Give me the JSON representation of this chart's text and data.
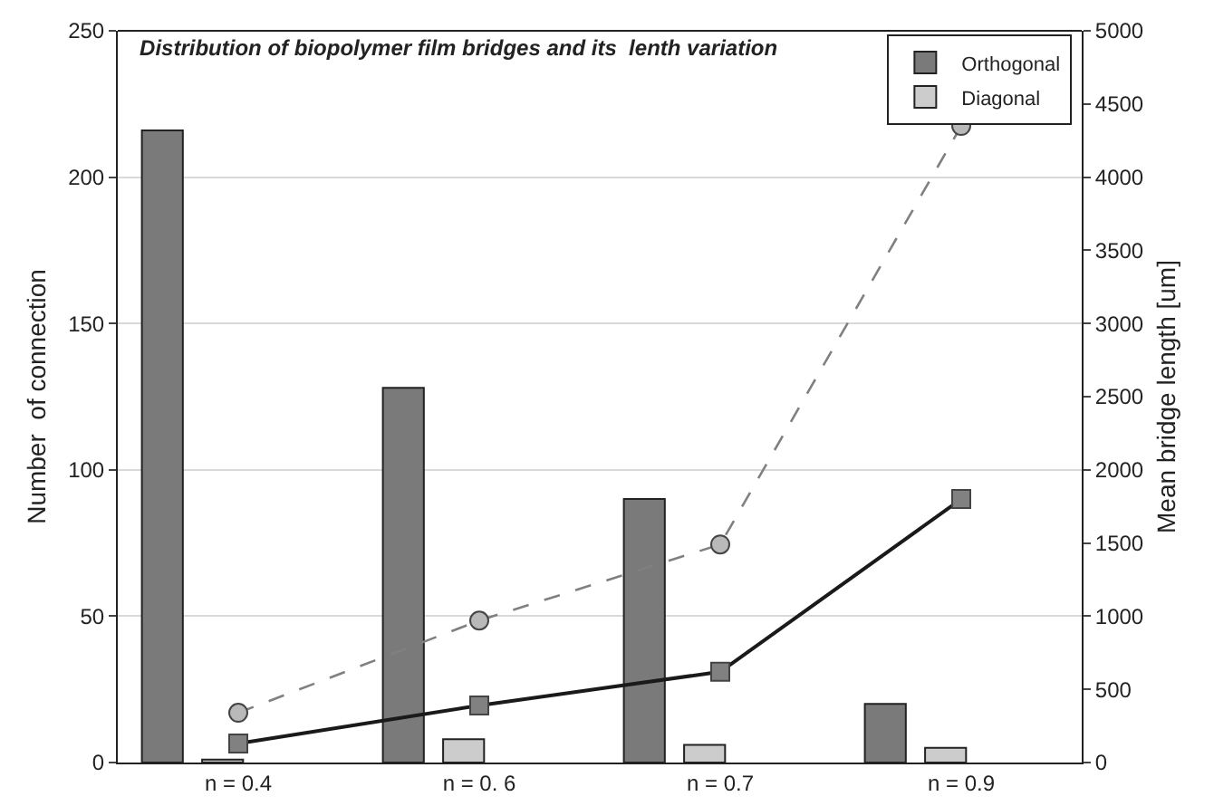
{
  "chart_data": {
    "type": "bar",
    "title": "Distribution of biopolymer film bridges and its  lenth variation",
    "categories": [
      "n = 0.4",
      "n = 0. 6",
      "n = 0.7",
      "n = 0.9"
    ],
    "ylabel": "Number  of connection",
    "y2label": "Mean bridge length [um]",
    "ylim": [
      0,
      250
    ],
    "yticks": [
      0,
      50,
      100,
      150,
      200,
      250
    ],
    "y2lim": [
      0,
      5000
    ],
    "y2ticks": [
      0,
      500,
      1000,
      1500,
      2000,
      2500,
      3000,
      3500,
      4000,
      4500,
      5000
    ],
    "grid": "y",
    "legend": "top right",
    "series": [
      {
        "name": "Orthogonal",
        "color": "#7a7a7a",
        "values": [
          216,
          128,
          90,
          20
        ]
      },
      {
        "name": "Diagonal",
        "color": "#cccccc",
        "values": [
          1,
          8,
          6,
          5
        ]
      },
      {
        "type": "line",
        "axis": "y2",
        "color": "#1a1a1a",
        "marker": "square",
        "line_style": "solid",
        "values": [
          130,
          390,
          620,
          1800
        ]
      },
      {
        "type": "line",
        "axis": "y2",
        "color": "#808080",
        "marker": "circle",
        "line_style": "dashed",
        "values": [
          340,
          970,
          1490,
          4350
        ]
      }
    ]
  }
}
